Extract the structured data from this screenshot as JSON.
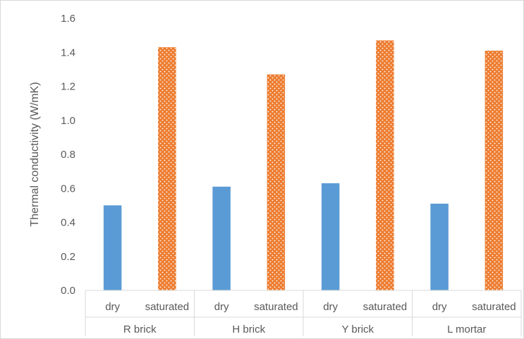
{
  "chart_data": {
    "type": "bar",
    "title": "",
    "ylabel": "Thermal conductivity (W/mK)",
    "xlabel": "",
    "ylim": [
      0,
      1.6
    ],
    "y_ticks": [
      "0.0",
      "0.2",
      "0.4",
      "0.6",
      "0.8",
      "1.0",
      "1.2",
      "1.4",
      "1.6"
    ],
    "grid": false,
    "legend": "none",
    "groups": [
      {
        "label": "R brick",
        "bars": [
          {
            "label": "dry",
            "value": 0.5,
            "style": "solid"
          },
          {
            "label": "saturated",
            "value": 1.43,
            "style": "dotted"
          }
        ]
      },
      {
        "label": "H brick",
        "bars": [
          {
            "label": "dry",
            "value": 0.61,
            "style": "solid"
          },
          {
            "label": "saturated",
            "value": 1.27,
            "style": "dotted"
          }
        ]
      },
      {
        "label": "Y brick",
        "bars": [
          {
            "label": "dry",
            "value": 0.63,
            "style": "solid"
          },
          {
            "label": "saturated",
            "value": 1.47,
            "style": "dotted"
          }
        ]
      },
      {
        "label": "L mortar",
        "bars": [
          {
            "label": "dry",
            "value": 0.51,
            "style": "solid"
          },
          {
            "label": "saturated",
            "value": 1.41,
            "style": "dotted"
          }
        ]
      }
    ],
    "colors": {
      "dry": "#5b9bd5",
      "saturated": "#ed7d31",
      "axis": "#d9d9d9",
      "text": "#595959"
    }
  }
}
